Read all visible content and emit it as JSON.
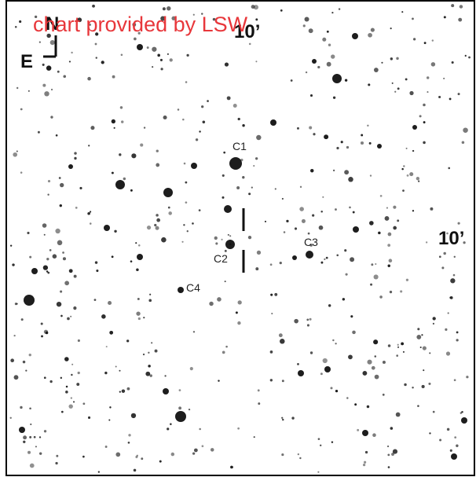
{
  "title": "chart provided by LSW",
  "compass": {
    "north": "N",
    "east": "E"
  },
  "scale": {
    "top": "10’",
    "right": "10’"
  },
  "labels": [
    "C1",
    "C2",
    "C3",
    "C4"
  ]
}
